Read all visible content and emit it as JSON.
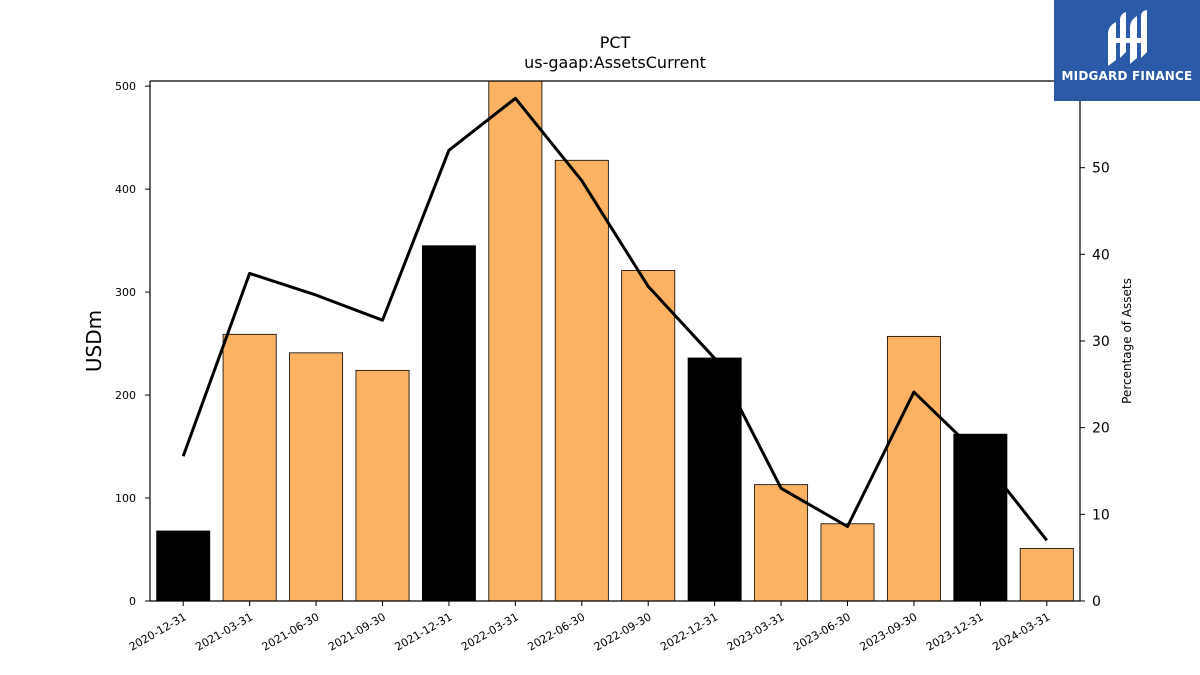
{
  "chart_data": {
    "type": "bar",
    "title": "PCT",
    "subtitle": "us-gaap:AssetsCurrent",
    "ylabel": "USDm",
    "ylabel_right": "Percentage of Assets",
    "categories": [
      "2020-12-31",
      "2021-03-31",
      "2021-06-30",
      "2021-09-30",
      "2021-12-31",
      "2022-03-31",
      "2022-06-30",
      "2022-09-30",
      "2022-12-31",
      "2023-03-31",
      "2023-06-30",
      "2023-09-30",
      "2023-12-31",
      "2024-03-31"
    ],
    "series": [
      {
        "type": "bar",
        "axis": "left",
        "values": [
          68,
          259,
          241,
          224,
          345,
          505,
          428,
          321,
          236,
          113,
          75,
          257,
          162,
          51
        ],
        "colors": [
          "#000000",
          "#fbb263",
          "#fbb263",
          "#fbb263",
          "#000000",
          "#fbb263",
          "#fbb263",
          "#fbb263",
          "#000000",
          "#fbb263",
          "#fbb263",
          "#fbb263",
          "#000000",
          "#fbb263"
        ]
      },
      {
        "type": "line",
        "axis": "right",
        "values": [
          16.7,
          37.8,
          35.3,
          32.4,
          52.0,
          58.0,
          48.5,
          36.3,
          28.0,
          13.0,
          8.6,
          24.1,
          16.7,
          7.0
        ],
        "color": "#000000"
      }
    ],
    "ylim": [
      0,
      505
    ],
    "yticks": [
      0,
      100,
      200,
      300,
      400,
      500
    ],
    "ylim_right": [
      0,
      60
    ],
    "yticks_right": [
      0,
      10,
      20,
      30,
      40,
      50
    ],
    "grid": false
  },
  "logo": {
    "text": "MIDGARD FINANCE",
    "background": "#2a5aa8"
  }
}
